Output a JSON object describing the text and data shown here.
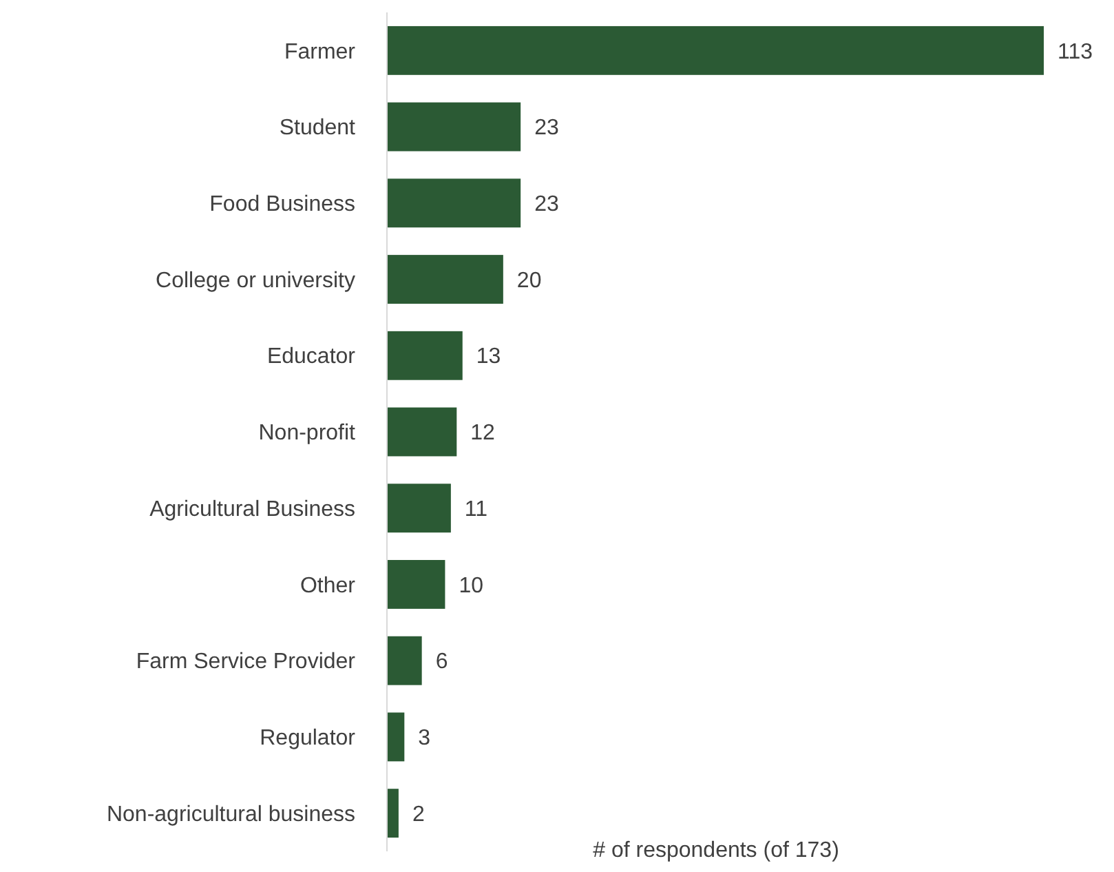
{
  "chart_data": {
    "type": "bar",
    "orientation": "horizontal",
    "xlabel": "# of respondents (of 173)",
    "categories": [
      "Farmer",
      "Student",
      "Food Business",
      "College or university",
      "Educator",
      "Non-profit",
      "Agricultural Business",
      "Other",
      "Farm Service Provider",
      "Regulator",
      "Non-agricultural business"
    ],
    "values": [
      113,
      23,
      23,
      20,
      13,
      12,
      11,
      10,
      6,
      3,
      2
    ],
    "color": "#2b5a34",
    "data_labels": true
  }
}
